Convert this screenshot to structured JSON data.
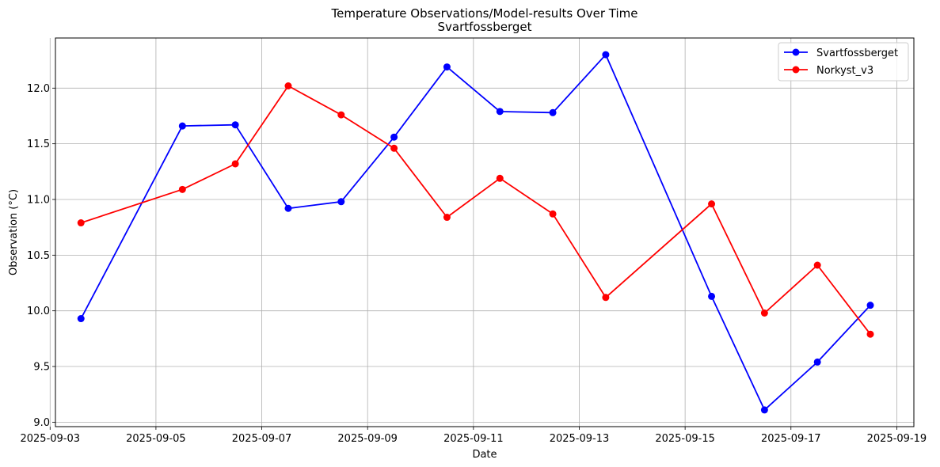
{
  "chart_data": {
    "type": "line",
    "title": "Temperature Observations/Model-results Over Time",
    "subtitle": "Svartfossberget",
    "xlabel": "Date",
    "ylabel": "Observation (°C)",
    "xlim": [
      "2025-09-03T02:25",
      "2025-09-19T07:45"
    ],
    "ylim": [
      8.96,
      12.45
    ],
    "x_ticks": [
      "2025-09-03",
      "2025-09-05",
      "2025-09-07",
      "2025-09-09",
      "2025-09-11",
      "2025-09-13",
      "2025-09-15",
      "2025-09-17",
      "2025-09-19"
    ],
    "y_ticks": [
      "9.0",
      "9.5",
      "10.0",
      "10.5",
      "11.0",
      "11.5",
      "12.0"
    ],
    "grid": true,
    "legend_position": "top-right",
    "series": [
      {
        "name": "Svartfossberget",
        "color": "#0000ff",
        "marker": "circle",
        "points": [
          {
            "x": "2025-09-03T14:00",
            "y": 9.93
          },
          {
            "x": "2025-09-05T12:00",
            "y": 11.66
          },
          {
            "x": "2025-09-06T12:00",
            "y": 11.67
          },
          {
            "x": "2025-09-07T12:00",
            "y": 10.92
          },
          {
            "x": "2025-09-08T12:00",
            "y": 10.98
          },
          {
            "x": "2025-09-09T12:00",
            "y": 11.56
          },
          {
            "x": "2025-09-10T12:00",
            "y": 12.19
          },
          {
            "x": "2025-09-11T12:00",
            "y": 11.79
          },
          {
            "x": "2025-09-12T12:00",
            "y": 11.78
          },
          {
            "x": "2025-09-13T12:00",
            "y": 12.3
          },
          {
            "x": "2025-09-15T12:00",
            "y": 10.13
          },
          {
            "x": "2025-09-16T12:00",
            "y": 9.11
          },
          {
            "x": "2025-09-17T12:00",
            "y": 9.54
          },
          {
            "x": "2025-09-18T12:00",
            "y": 10.05
          }
        ]
      },
      {
        "name": "Norkyst_v3",
        "color": "#ff0000",
        "marker": "circle",
        "points": [
          {
            "x": "2025-09-03T14:00",
            "y": 10.79
          },
          {
            "x": "2025-09-05T12:00",
            "y": 11.09
          },
          {
            "x": "2025-09-06T12:00",
            "y": 11.32
          },
          {
            "x": "2025-09-07T12:00",
            "y": 12.02
          },
          {
            "x": "2025-09-08T12:00",
            "y": 11.76
          },
          {
            "x": "2025-09-09T12:00",
            "y": 11.46
          },
          {
            "x": "2025-09-10T12:00",
            "y": 10.84
          },
          {
            "x": "2025-09-11T12:00",
            "y": 11.19
          },
          {
            "x": "2025-09-12T12:00",
            "y": 10.87
          },
          {
            "x": "2025-09-13T12:00",
            "y": 10.12
          },
          {
            "x": "2025-09-15T12:00",
            "y": 10.96
          },
          {
            "x": "2025-09-16T12:00",
            "y": 9.98
          },
          {
            "x": "2025-09-17T12:00",
            "y": 10.41
          },
          {
            "x": "2025-09-18T12:00",
            "y": 9.79
          }
        ]
      }
    ]
  }
}
